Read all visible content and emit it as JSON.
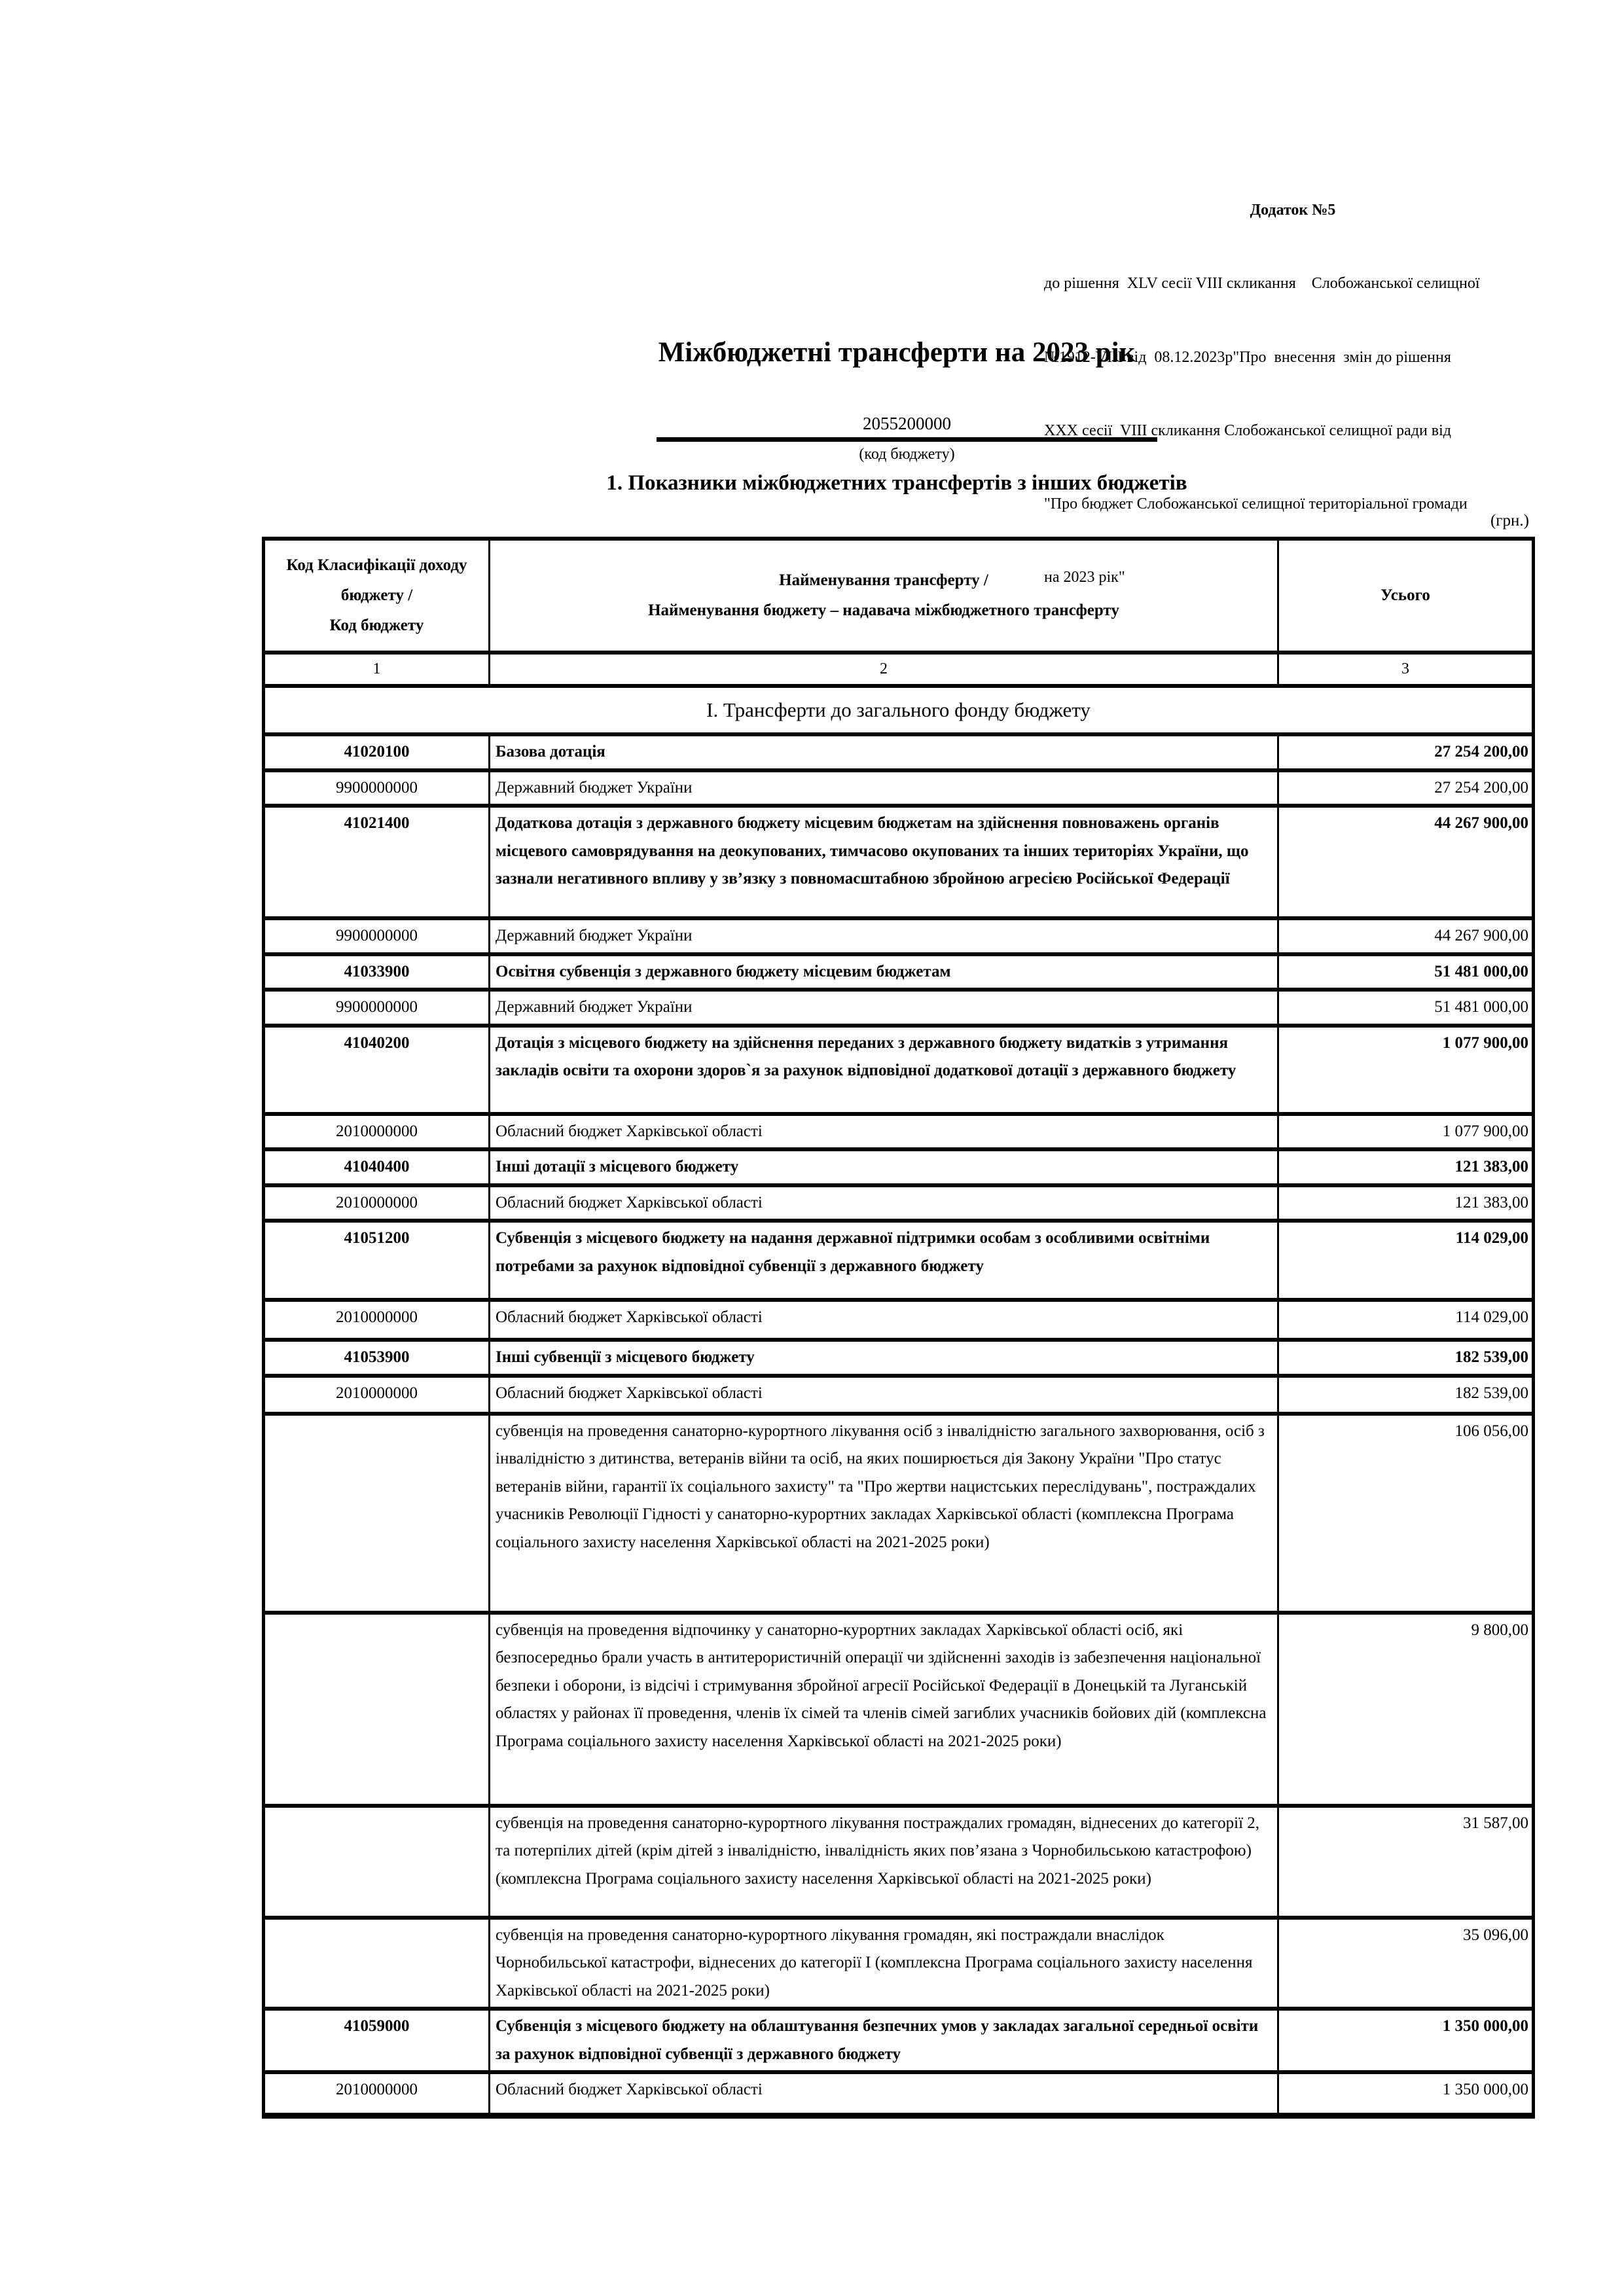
{
  "header": {
    "appendix_title": "Додаток №5",
    "lines": [
      "до рішення  XLV сесії VIII скликання    Слобожанської селищної",
      "№1912-VIII від  08.12.2023р\"Про  внесення  змін до рішення",
      "ХХХ сесії  VIII скликання Слобожанської селищної ради від",
      "\"Про бюджет Слобожанської селищної територіальної громади",
      "на 2023 рік\""
    ],
    "title": "Міжбюджетні трансферти на 2023 рік",
    "budget_code": "2055200000",
    "budget_code_caption": "(код бюджету)",
    "section_heading": "1. Показники міжбюджетних трансфертів з інших бюджетів"
  },
  "table": {
    "currency_note": "(грн.)",
    "columns": [
      {
        "label": "Код Класифікації доходу\nбюджету /\nКод бюджету",
        "number": "1"
      },
      {
        "label": "Найменування трансферту /\nНайменування бюджету – надавача міжбюджетного трансферту",
        "number": "2"
      },
      {
        "label": "Усього",
        "number": "3"
      }
    ],
    "rows": [
      {
        "level": "section",
        "code": "",
        "name": "І. Трансферти до загального фонду бюджету",
        "total": ""
      },
      {
        "level": "transfer",
        "code": "41020100",
        "name": "Базова дотація",
        "total": "27 254 200,00"
      },
      {
        "level": "provider",
        "code": "9900000000",
        "name": "Державний бюджет України",
        "total": "27 254 200,00"
      },
      {
        "level": "transfer",
        "code": "41021400",
        "name": "Додаткова дотація з державного бюджету місцевим бюджетам на здійснення повноважень органів місцевого самоврядування на деокупованих, тимчасово окупованих та інших територіях України, що зазнали негативного впливу у зв’язку з повномасштабною збройною агресією Російської Федерації",
        "total": "44 267 900,00"
      },
      {
        "level": "provider",
        "code": "9900000000",
        "name": "Державний бюджет України",
        "total": "44 267 900,00"
      },
      {
        "level": "transfer",
        "code": "41033900",
        "name": "Освітня субвенція з державного бюджету місцевим бюджетам",
        "total": "51 481 000,00"
      },
      {
        "level": "provider",
        "code": "9900000000",
        "name": "Державний бюджет України",
        "total": "51 481 000,00"
      },
      {
        "level": "transfer",
        "code": "41040200",
        "name": "Дотація з місцевого бюджету на здійснення переданих з державного бюджету видатків з утримання закладів освіти та охорони здоров`я за рахунок відповідної додаткової дотації з державного бюджету",
        "total": "1 077 900,00"
      },
      {
        "level": "provider",
        "code": "2010000000",
        "name": "Обласний бюджет Харківської області",
        "total": "1 077 900,00"
      },
      {
        "level": "transfer",
        "code": "41040400",
        "name": "Інші дотації з місцевого бюджету",
        "total": "121 383,00"
      },
      {
        "level": "provider",
        "code": "2010000000",
        "name": "Обласний бюджет Харківської області",
        "total": "121 383,00"
      },
      {
        "level": "transfer",
        "code": "41051200",
        "name": "Субвенція з місцевого бюджету на надання державної підтримки особам з особливими освітніми потребами за рахунок відповідної субвенції з державного бюджету",
        "total": "114 029,00"
      },
      {
        "level": "provider",
        "code": "2010000000",
        "name": "Обласний бюджет Харківської області",
        "total": "114 029,00"
      },
      {
        "level": "transfer",
        "code": "41053900",
        "name": "Інші субвенції з місцевого бюджету",
        "total": "182 539,00"
      },
      {
        "level": "provider",
        "code": "2010000000",
        "name": "Обласний бюджет Харківської області",
        "total": "182 539,00"
      },
      {
        "level": "detail",
        "code": "",
        "name": "субвенція на проведення санаторно-курортного лікування осіб з інвалідністю загального захворювання, осіб з інвалідністю з дитинства, ветеранів війни та осіб, на яких поширюється дія Закону України \"Про статус ветеранів війни, гарантії їх соціального захисту\" та \"Про жертви нацистських переслідувань\", постраждалих учасників Революції Гідності у санаторно-курортних закладах Харківської області (комплексна Програма соціального захисту населення Харківської області на 2021-2025 роки)",
        "total": "106 056,00"
      },
      {
        "level": "detail",
        "code": "",
        "name": "субвенція на проведення відпочинку у санаторно-курортних закладах Харківської області осіб, які безпосередньо брали участь в антитерористичній операції чи здійсненні заходів із забезпечення національної безпеки і оборони, із відсічі і стримування збройної агресії Російської Федерації в Донецькій та Луганській областях у районах її проведення, членів їх сімей та членів сімей загиблих учасників бойових дій (комплексна Програма соціального захисту населення Харківської області на 2021-2025 роки)",
        "total": "9 800,00"
      },
      {
        "level": "detail",
        "code": "",
        "name": "субвенція на проведення санаторно-курортного лікування постраждалих громадян, віднесених до категорії 2, та потерпілих дітей (крім дітей з інвалідністю, інвалідність яких пов’язана з Чорнобильською катастрофою)  (комплексна Програма соціального захисту населення Харківської області на 2021-2025 роки)",
        "total": "31 587,00"
      },
      {
        "level": "detail",
        "code": "",
        "name": "субвенція на проведення санаторно-курортного лікування  громадян, які постраждали внаслідок  Чорнобильської катастрофи, віднесених до категорії І (комплексна Програма соціального захисту населення Харківської області на 2021-2025 роки)",
        "total": "35 096,00"
      },
      {
        "level": "transfer",
        "code": "41059000",
        "name": "Субвенція з місцевого бюджету на облаштування безпечних умов у закладах загальної середньої освіти за рахунок відповідної субвенції з державного бюджету",
        "total": "1 350 000,00"
      },
      {
        "level": "provider",
        "code": "2010000000",
        "name": "Обласний бюджет Харківської області",
        "total": "1 350 000,00"
      }
    ]
  }
}
